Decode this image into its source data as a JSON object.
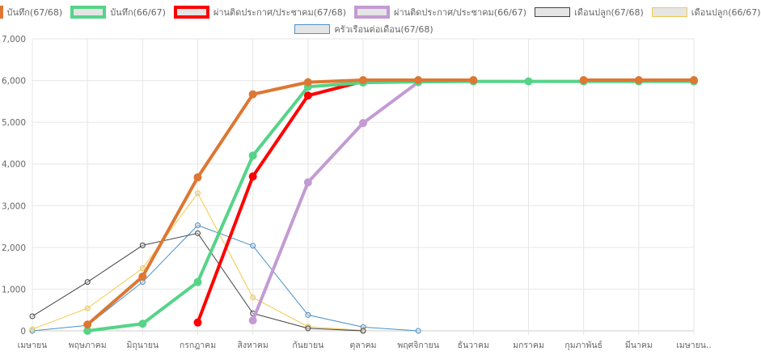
{
  "chart_data": {
    "type": "line",
    "categories": [
      "เมษายน",
      "พฤษภาคม",
      "มิถุนายน",
      "กรกฎาคม",
      "สิงหาคม",
      "กันยายน",
      "ตุลาคม",
      "พฤศจิกายน",
      "ธันวาคม",
      "มกราคม",
      "กุมภาพันธ์",
      "มีนาคม",
      "เมษายน.."
    ],
    "ylim": [
      0,
      7000
    ],
    "yticks": [
      "0",
      "1,000",
      "2,000",
      "3,000",
      "4,000",
      "5,000",
      "6,000",
      "7,000"
    ],
    "grid": true,
    "legend_position": "top",
    "series": [
      {
        "name": "บันทึก(67/68)",
        "color": "#dd7733",
        "width": 4,
        "values": [
          null,
          150,
          1300,
          3680,
          5670,
          5960,
          6010,
          6010,
          6010,
          null,
          6010,
          6010,
          6010
        ]
      },
      {
        "name": "บันทึก(66/67)",
        "color": "#55d488",
        "width": 4,
        "values": [
          null,
          0,
          170,
          1170,
          4200,
          5850,
          5950,
          5970,
          5980,
          5980,
          5980,
          5980,
          5980
        ]
      },
      {
        "name": "ผ่านติดประกาศ/ประชาคม(67/68)",
        "color": "#ff0000",
        "width": 4,
        "values": [
          null,
          null,
          null,
          200,
          3700,
          5640,
          5980,
          null,
          null,
          null,
          null,
          null,
          null
        ]
      },
      {
        "name": "ผ่านติดประกาศ/ประชาคม(66/67)",
        "color": "#c39bd3",
        "width": 4,
        "values": [
          null,
          null,
          null,
          null,
          250,
          3560,
          4980,
          5960,
          null,
          null,
          null,
          null,
          null
        ]
      },
      {
        "name": "เดือนปลูก(67/68)",
        "color": "#444444",
        "width": 1,
        "values": [
          350,
          1170,
          2050,
          2340,
          420,
          60,
          0,
          null,
          null,
          null,
          null,
          null,
          null
        ]
      },
      {
        "name": "เดือนปลูก(66/67)",
        "color": "#f2c94c",
        "width": 1,
        "values": [
          40,
          540,
          1500,
          3300,
          800,
          100,
          10,
          null,
          null,
          null,
          null,
          null,
          null
        ]
      },
      {
        "name": "ครัวเรือนต่อเดือน(67/68)",
        "color": "#4a90c8",
        "width": 1,
        "values": [
          0,
          130,
          1170,
          2530,
          2040,
          380,
          90,
          0,
          null,
          null,
          null,
          null,
          null
        ]
      }
    ]
  }
}
